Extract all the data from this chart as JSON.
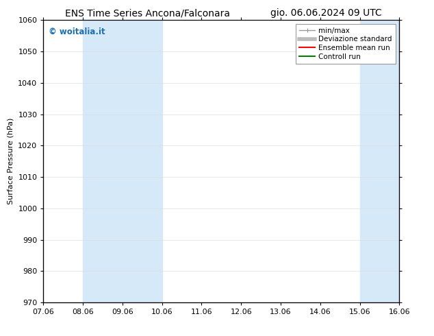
{
  "title_left": "ENS Time Series Ancona/Falconara",
  "title_right": "gio. 06.06.2024 09 UTC",
  "ylabel": "Surface Pressure (hPa)",
  "ylim": [
    970,
    1060
  ],
  "yticks": [
    970,
    980,
    990,
    1000,
    1010,
    1020,
    1030,
    1040,
    1050,
    1060
  ],
  "xtick_labels": [
    "07.06",
    "08.06",
    "09.06",
    "10.06",
    "11.06",
    "12.06",
    "13.06",
    "14.06",
    "15.06",
    "16.06"
  ],
  "xtick_positions": [
    0,
    1,
    2,
    3,
    4,
    5,
    6,
    7,
    8,
    9
  ],
  "shaded_bands": [
    {
      "x_start": 1,
      "x_end": 3
    },
    {
      "x_start": 8,
      "x_end": 9
    }
  ],
  "shaded_color": "#d6e9f8",
  "watermark_text": "© woitalia.it",
  "watermark_color": "#1a6eb5",
  "legend_items": [
    {
      "label": "min/max",
      "color": "#999999",
      "lw": 1
    },
    {
      "label": "Deviazione standard",
      "color": "#bbbbbb",
      "lw": 4
    },
    {
      "label": "Ensemble mean run",
      "color": "red",
      "lw": 1.5
    },
    {
      "label": "Controll run",
      "color": "green",
      "lw": 1.5
    }
  ],
  "bg_color": "#ffffff",
  "grid_color": "#dddddd",
  "title_fontsize": 10,
  "axis_label_fontsize": 8,
  "tick_fontsize": 8,
  "legend_fontsize": 7.5
}
